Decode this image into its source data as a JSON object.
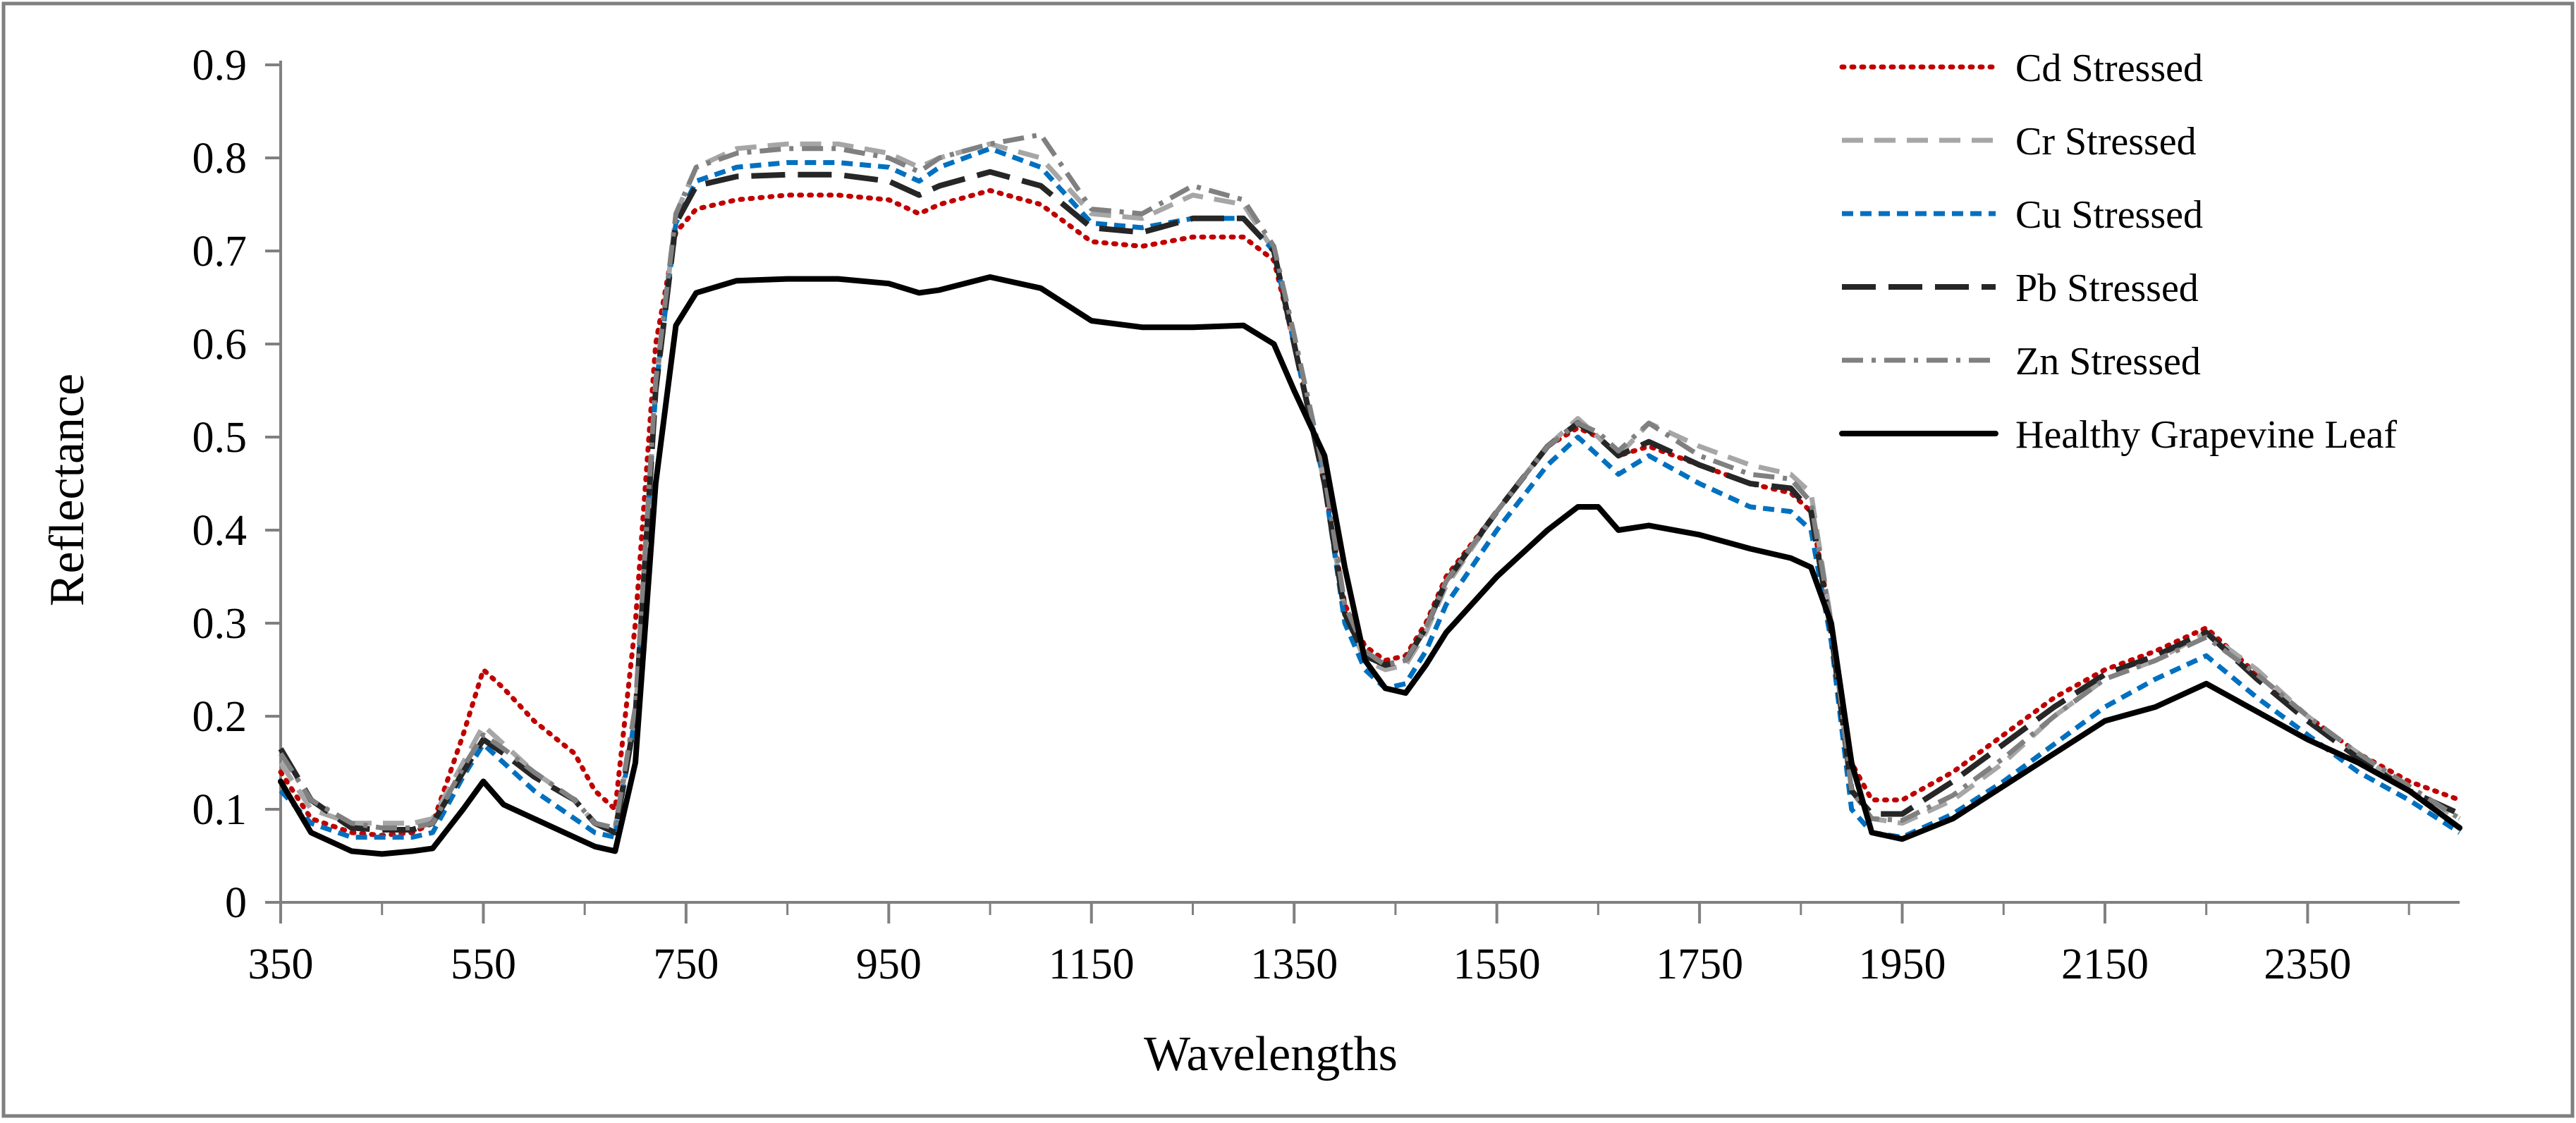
{
  "chart_data": {
    "type": "line",
    "title": "",
    "xlabel": "Wavelengths",
    "ylabel": "Reflectance",
    "xlim": [
      350,
      2500
    ],
    "ylim": [
      0,
      0.9
    ],
    "x_ticks": [
      "350",
      "550",
      "750",
      "950",
      "1150",
      "1350",
      "1550",
      "1750",
      "1950",
      "2150",
      "2350"
    ],
    "y_ticks": [
      "0",
      "0.1",
      "0.2",
      "0.3",
      "0.4",
      "0.5",
      "0.6",
      "0.7",
      "0.8",
      "0.9"
    ],
    "legend_position": "top-right",
    "x": [
      350,
      380,
      420,
      450,
      480,
      500,
      530,
      550,
      570,
      600,
      640,
      660,
      680,
      700,
      720,
      740,
      760,
      800,
      850,
      900,
      950,
      980,
      1000,
      1050,
      1100,
      1150,
      1200,
      1250,
      1300,
      1330,
      1350,
      1380,
      1400,
      1420,
      1440,
      1460,
      1480,
      1500,
      1550,
      1600,
      1630,
      1650,
      1670,
      1700,
      1750,
      1800,
      1840,
      1860,
      1880,
      1900,
      1920,
      1950,
      2000,
      2050,
      2100,
      2150,
      2200,
      2250,
      2300,
      2350,
      2400,
      2450,
      2500
    ],
    "series": [
      {
        "name": "Cd Stressed",
        "color": "#C00000",
        "dash": "dotted",
        "values": [
          0.14,
          0.09,
          0.075,
          0.072,
          0.075,
          0.085,
          0.18,
          0.25,
          0.23,
          0.195,
          0.16,
          0.12,
          0.1,
          0.3,
          0.6,
          0.72,
          0.745,
          0.755,
          0.76,
          0.76,
          0.755,
          0.74,
          0.75,
          0.765,
          0.75,
          0.71,
          0.705,
          0.715,
          0.715,
          0.69,
          0.6,
          0.45,
          0.32,
          0.275,
          0.26,
          0.265,
          0.3,
          0.35,
          0.42,
          0.49,
          0.51,
          0.5,
          0.48,
          0.49,
          0.47,
          0.45,
          0.44,
          0.42,
          0.3,
          0.15,
          0.11,
          0.11,
          0.14,
          0.18,
          0.22,
          0.25,
          0.27,
          0.295,
          0.245,
          0.2,
          0.16,
          0.13,
          0.11
        ]
      },
      {
        "name": "Cr Stressed",
        "color": "#A6A6A6",
        "dash": "dashed",
        "values": [
          0.15,
          0.1,
          0.085,
          0.085,
          0.085,
          0.09,
          0.15,
          0.19,
          0.17,
          0.14,
          0.11,
          0.085,
          0.08,
          0.2,
          0.55,
          0.74,
          0.79,
          0.81,
          0.815,
          0.815,
          0.805,
          0.79,
          0.8,
          0.815,
          0.8,
          0.74,
          0.735,
          0.76,
          0.75,
          0.7,
          0.6,
          0.45,
          0.31,
          0.26,
          0.25,
          0.255,
          0.29,
          0.34,
          0.42,
          0.49,
          0.52,
          0.5,
          0.48,
          0.515,
          0.49,
          0.47,
          0.46,
          0.44,
          0.3,
          0.12,
          0.09,
          0.085,
          0.11,
          0.15,
          0.2,
          0.24,
          0.26,
          0.29,
          0.25,
          0.2,
          0.16,
          0.12,
          0.09
        ]
      },
      {
        "name": "Cu Stressed",
        "color": "#0070C0",
        "dash": "short-dash",
        "values": [
          0.12,
          0.085,
          0.07,
          0.07,
          0.07,
          0.075,
          0.135,
          0.17,
          0.15,
          0.12,
          0.09,
          0.075,
          0.07,
          0.2,
          0.55,
          0.73,
          0.775,
          0.79,
          0.795,
          0.795,
          0.79,
          0.775,
          0.79,
          0.81,
          0.79,
          0.73,
          0.725,
          0.735,
          0.735,
          0.7,
          0.6,
          0.45,
          0.3,
          0.25,
          0.23,
          0.235,
          0.27,
          0.32,
          0.4,
          0.47,
          0.5,
          0.48,
          0.46,
          0.48,
          0.45,
          0.425,
          0.42,
          0.4,
          0.28,
          0.1,
          0.075,
          0.07,
          0.095,
          0.13,
          0.17,
          0.21,
          0.24,
          0.265,
          0.22,
          0.18,
          0.14,
          0.11,
          0.075
        ]
      },
      {
        "name": "Pb Stressed",
        "color": "#262626",
        "dash": "long-dash",
        "values": [
          0.165,
          0.11,
          0.08,
          0.078,
          0.078,
          0.085,
          0.14,
          0.175,
          0.16,
          0.135,
          0.11,
          0.085,
          0.075,
          0.2,
          0.55,
          0.73,
          0.77,
          0.78,
          0.782,
          0.782,
          0.775,
          0.76,
          0.77,
          0.785,
          0.77,
          0.725,
          0.72,
          0.735,
          0.735,
          0.7,
          0.6,
          0.45,
          0.31,
          0.265,
          0.255,
          0.26,
          0.295,
          0.345,
          0.42,
          0.49,
          0.515,
          0.5,
          0.48,
          0.495,
          0.47,
          0.45,
          0.445,
          0.42,
          0.29,
          0.12,
          0.095,
          0.095,
          0.13,
          0.17,
          0.21,
          0.245,
          0.265,
          0.29,
          0.24,
          0.195,
          0.155,
          0.12,
          0.095
        ]
      },
      {
        "name": "Zn Stressed",
        "color": "#808080",
        "dash": "dash-dot",
        "values": [
          0.16,
          0.11,
          0.085,
          0.08,
          0.08,
          0.085,
          0.145,
          0.18,
          0.165,
          0.14,
          0.11,
          0.085,
          0.08,
          0.21,
          0.56,
          0.74,
          0.79,
          0.805,
          0.81,
          0.81,
          0.8,
          0.785,
          0.8,
          0.815,
          0.825,
          0.745,
          0.74,
          0.77,
          0.755,
          0.705,
          0.61,
          0.46,
          0.32,
          0.27,
          0.255,
          0.26,
          0.295,
          0.345,
          0.42,
          0.49,
          0.515,
          0.505,
          0.485,
          0.515,
          0.48,
          0.46,
          0.455,
          0.43,
          0.3,
          0.12,
          0.09,
          0.088,
          0.115,
          0.155,
          0.2,
          0.24,
          0.26,
          0.285,
          0.245,
          0.2,
          0.16,
          0.125,
          0.09
        ]
      },
      {
        "name": "Healthy Grapevine Leaf",
        "color": "#000000",
        "dash": "solid",
        "values": [
          0.13,
          0.075,
          0.055,
          0.052,
          0.055,
          0.058,
          0.1,
          0.13,
          0.105,
          0.09,
          0.07,
          0.06,
          0.055,
          0.15,
          0.45,
          0.62,
          0.655,
          0.668,
          0.67,
          0.67,
          0.665,
          0.655,
          0.658,
          0.672,
          0.66,
          0.625,
          0.618,
          0.618,
          0.62,
          0.6,
          0.55,
          0.48,
          0.36,
          0.26,
          0.23,
          0.225,
          0.255,
          0.29,
          0.35,
          0.4,
          0.425,
          0.425,
          0.4,
          0.405,
          0.395,
          0.38,
          0.37,
          0.36,
          0.3,
          0.15,
          0.075,
          0.068,
          0.09,
          0.125,
          0.16,
          0.195,
          0.21,
          0.235,
          0.205,
          0.175,
          0.15,
          0.12,
          0.08
        ]
      }
    ]
  }
}
